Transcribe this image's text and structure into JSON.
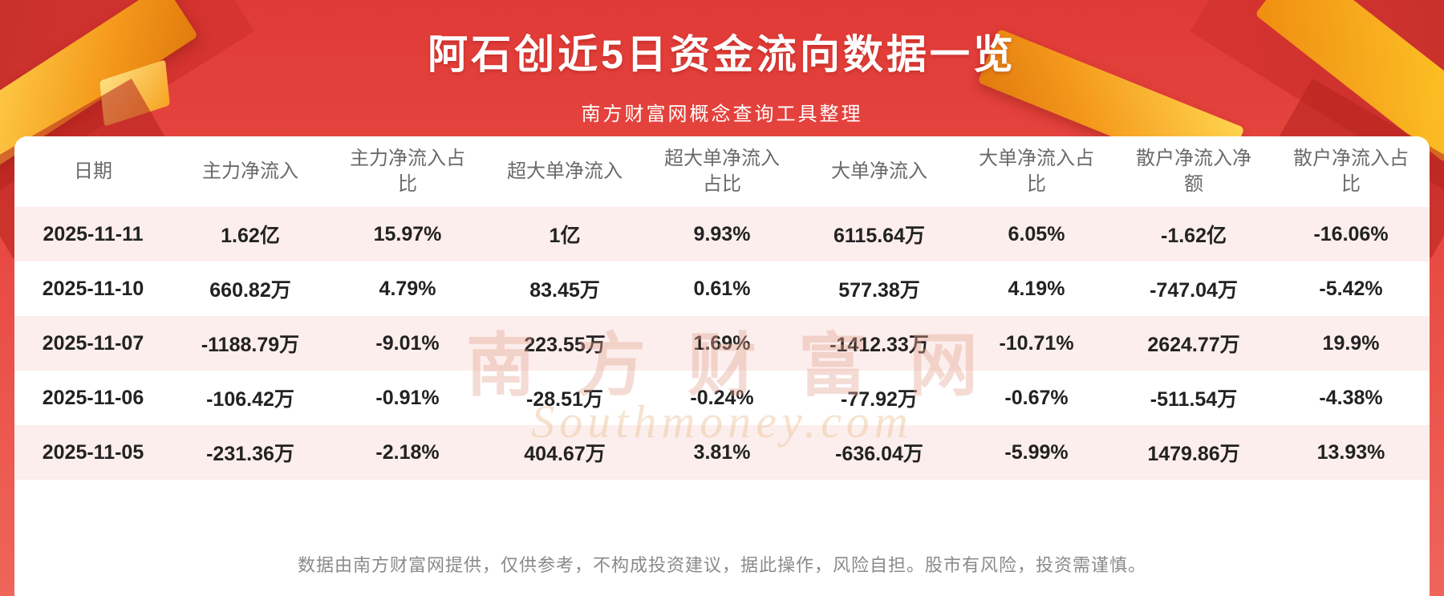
{
  "header": {
    "title": "阿石创近5日资金流向数据一览",
    "subtitle": "南方财富网概念查询工具整理"
  },
  "chart_data": {
    "type": "table",
    "title": "阿石创近5日资金流向数据一览",
    "columns": [
      "日期",
      "主力净流入",
      "主力净流入占比",
      "超大单净流入",
      "超大单净流入占比",
      "大单净流入",
      "大单净流入占比",
      "散户净流入净额",
      "散户净流入占比"
    ],
    "rows": [
      [
        "2025-11-11",
        "1.62亿",
        "15.97%",
        "1亿",
        "9.93%",
        "6115.64万",
        "6.05%",
        "-1.62亿",
        "-16.06%"
      ],
      [
        "2025-11-10",
        "660.82万",
        "4.79%",
        "83.45万",
        "0.61%",
        "577.38万",
        "4.19%",
        "-747.04万",
        "-5.42%"
      ],
      [
        "2025-11-07",
        "-1188.79万",
        "-9.01%",
        "223.55万",
        "1.69%",
        "-1412.33万",
        "-10.71%",
        "2624.77万",
        "19.9%"
      ],
      [
        "2025-11-06",
        "-106.42万",
        "-0.91%",
        "-28.51万",
        "-0.24%",
        "-77.92万",
        "-0.67%",
        "-511.54万",
        "-4.38%"
      ],
      [
        "2025-11-05",
        "-231.36万",
        "-2.18%",
        "404.67万",
        "3.81%",
        "-636.04万",
        "-5.99%",
        "1479.86万",
        "13.93%"
      ]
    ]
  },
  "watermark": {
    "line_cn": "南方财富网",
    "line_en": "Southmoney.com"
  },
  "footer": {
    "disclaimer": "数据由南方财富网提供，仅供参考，不构成投资建议，据此操作，风险自担。股市有风险，投资需谨慎。"
  },
  "colors": {
    "background_red": "#e4423d",
    "ribbon_gold": "#f59a1c",
    "row_stripe": "#fceeec",
    "header_text": "#6a6a6a",
    "data_text": "#222222",
    "footer_text": "#8a8a8a"
  }
}
